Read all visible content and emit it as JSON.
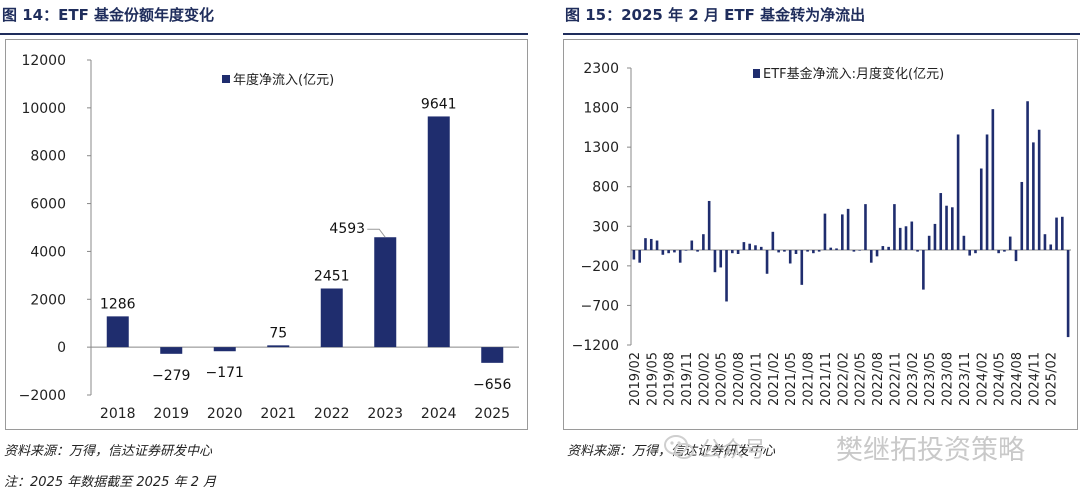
{
  "left": {
    "fig_title": "图 14：ETF 基金份额年度变化",
    "source": "资料来源：万得，信达证券研发中心",
    "note": "注：2025 年数据截至 2025 年 2 月"
  },
  "right": {
    "fig_title": "图 15：2025 年 2 月 ETF 基金转为净流出",
    "source": "资料来源：万得，信达证券研发中心"
  },
  "watermark": {
    "account": "公众号",
    "name": "樊继拓投资策略"
  },
  "colors": {
    "bar": "#1f2d6e",
    "title": "#1f2d5c",
    "axis": "#888888"
  },
  "chart_data": [
    {
      "type": "bar",
      "title": "ETF 基金份额年度变化",
      "legend": "年度净流入(亿元)",
      "categories": [
        "2018",
        "2019",
        "2020",
        "2021",
        "2022",
        "2023",
        "2024",
        "2025"
      ],
      "values": [
        1286,
        -279,
        -171,
        75,
        2451,
        4593,
        9641,
        -656
      ],
      "labels": [
        "1286",
        "−279",
        "−171",
        "75",
        "2451",
        "4593",
        "9641",
        "−656"
      ],
      "ylim": [
        -2000,
        12000
      ],
      "yticks": [
        -2000,
        0,
        2000,
        4000,
        6000,
        8000,
        10000,
        12000
      ],
      "ytick_labels": [
        "−2000",
        "0",
        "2000",
        "4000",
        "6000",
        "8000",
        "10000",
        "12000"
      ]
    },
    {
      "type": "bar",
      "title": "2025 年 2 月 ETF 基金转为净流出",
      "legend": "ETF基金净流入:月度变化(亿元)",
      "start": "2019/02",
      "x_tick_labels": [
        "2019/02",
        "2019/05",
        "2019/08",
        "2019/11",
        "2020/02",
        "2020/05",
        "2020/08",
        "2020/11",
        "2021/02",
        "2021/05",
        "2021/08",
        "2021/11",
        "2022/02",
        "2022/05",
        "2022/08",
        "2022/11",
        "2023/02",
        "2023/05",
        "2023/08",
        "2023/11",
        "2024/02",
        "2024/05",
        "2024/08",
        "2024/11",
        "2025/02"
      ],
      "values": [
        -120,
        -160,
        150,
        140,
        120,
        -60,
        -40,
        -30,
        -160,
        0,
        120,
        -20,
        200,
        620,
        -280,
        -220,
        -650,
        -40,
        -50,
        100,
        80,
        60,
        40,
        -300,
        230,
        -30,
        -20,
        -170,
        -50,
        -440,
        -20,
        -40,
        -20,
        460,
        30,
        20,
        450,
        520,
        -20,
        0,
        580,
        -160,
        -80,
        50,
        40,
        580,
        280,
        300,
        360,
        -20,
        -500,
        180,
        330,
        720,
        560,
        540,
        1460,
        180,
        -70,
        -40,
        1030,
        1460,
        1780,
        -40,
        -20,
        170,
        -140,
        860,
        1880,
        1360,
        1520,
        200,
        70,
        410,
        420,
        -1100
      ],
      "ylim": [
        -1200,
        2300
      ],
      "yticks": [
        -1200,
        -700,
        -200,
        300,
        800,
        1300,
        1800,
        2300
      ],
      "ytick_labels": [
        "−1200",
        "−700",
        "−200",
        "300",
        "800",
        "1300",
        "1800",
        "2300"
      ]
    }
  ]
}
